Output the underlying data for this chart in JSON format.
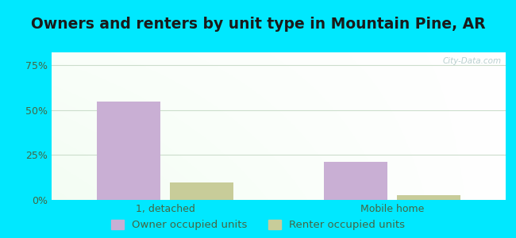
{
  "title": "Owners and renters by unit type in Mountain Pine, AR",
  "categories": [
    "1, detached",
    "Mobile home"
  ],
  "owner_values": [
    54.5,
    21.0
  ],
  "renter_values": [
    9.5,
    2.5
  ],
  "owner_color": "#c9afd4",
  "renter_color": "#c8cc99",
  "yticks": [
    0,
    25,
    50,
    75
  ],
  "ytick_labels": [
    "0%",
    "25%",
    "50%",
    "75%"
  ],
  "ylim": [
    0,
    82
  ],
  "bar_width": 0.28,
  "outer_bg": "#00e8ff",
  "watermark": "City-Data.com",
  "legend_labels": [
    "Owner occupied units",
    "Renter occupied units"
  ],
  "title_fontsize": 13.5,
  "tick_fontsize": 9,
  "legend_fontsize": 9.5,
  "grid_color": "#ccddcc",
  "tick_color": "#446644"
}
